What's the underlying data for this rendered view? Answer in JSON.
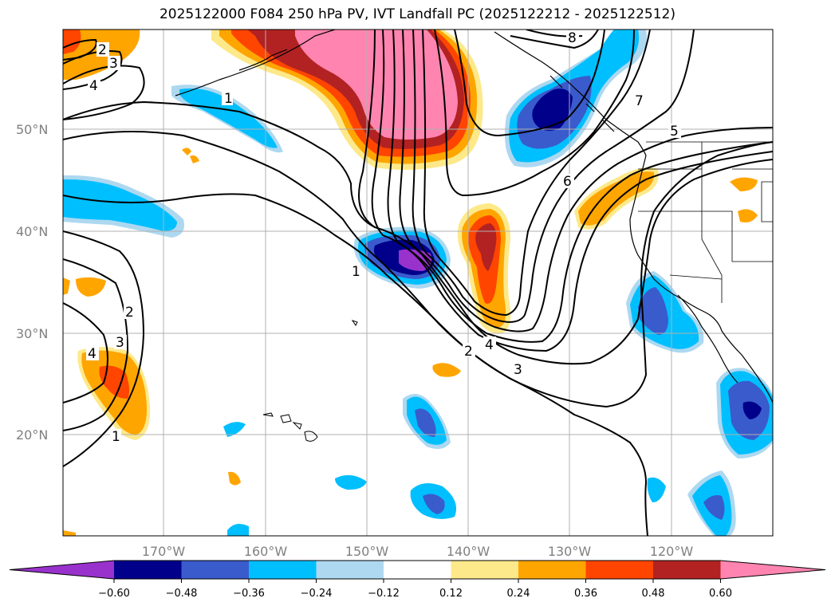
{
  "title": "2025122000 F084 250 hPa PV, IVT Landfall PC (2025122212 - 2025122512)",
  "map": {
    "lat_labels": [
      "50°N",
      "40°N",
      "30°N",
      "20°N"
    ],
    "lon_labels": [
      "170°W",
      "160°W",
      "150°W",
      "140°W",
      "130°W",
      "120°W"
    ]
  },
  "contour_labels": [
    "1",
    "2",
    "3",
    "4",
    "5",
    "6",
    "7",
    "8"
  ],
  "colorbar": {
    "ticks": [
      "−0.60",
      "−0.48",
      "−0.36",
      "−0.24",
      "−0.12",
      "0.12",
      "0.24",
      "0.36",
      "0.48",
      "0.60"
    ],
    "colors": [
      "#9932cc",
      "#00008b",
      "#3a5bcc",
      "#00bfff",
      "#add8f0",
      "#ffffff",
      "#fde98a",
      "#ffa500",
      "#ff4500",
      "#b22222",
      "#ff85b0"
    ]
  }
}
